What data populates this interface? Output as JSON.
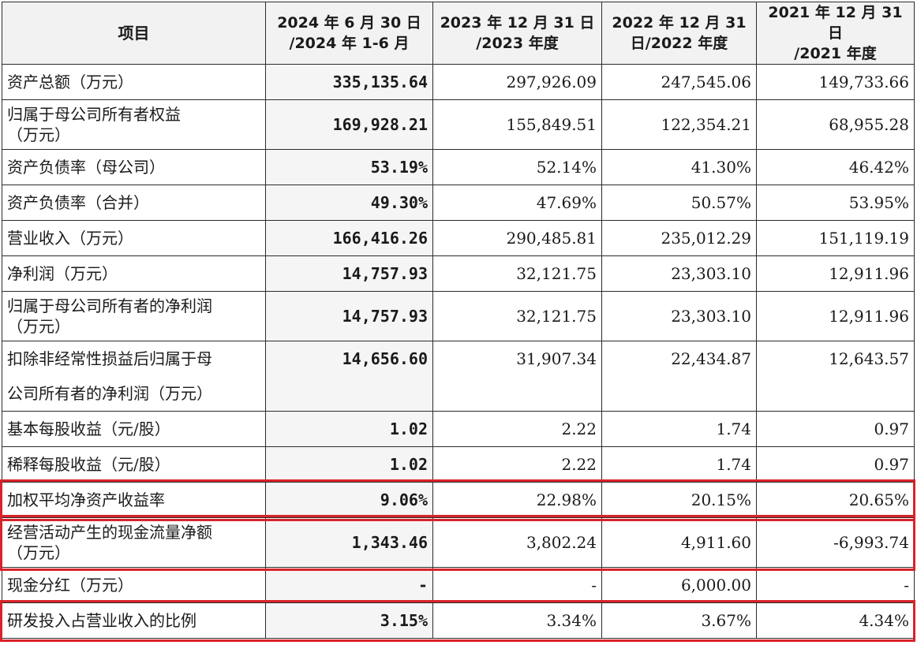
{
  "table": {
    "headers": [
      "项目",
      "2024 年 6 月 30 日\n/2024 年 1-6 月",
      "2023 年 12 月 31 日\n/2023 年度",
      "2022 年 12 月 31\n日/2022 年度",
      "2021 年 12 月 31 日\n/2021 年度"
    ],
    "rows": [
      {
        "label": "资产总额（万元）",
        "values": [
          "335,135.64",
          "297,926.09",
          "247,545.06",
          "149,733.66"
        ]
      },
      {
        "label": "归属于母公司所有者权益\n（万元）",
        "values": [
          "169,928.21",
          "155,849.51",
          "122,354.21",
          "68,955.28"
        ]
      },
      {
        "label": "资产负债率（母公司）",
        "values": [
          "53.19%",
          "52.14%",
          "41.30%",
          "46.42%"
        ]
      },
      {
        "label": "资产负债率（合并）",
        "values": [
          "49.30%",
          "47.69%",
          "50.57%",
          "53.95%"
        ]
      },
      {
        "label": "营业收入（万元）",
        "values": [
          "166,416.26",
          "290,485.81",
          "235,012.29",
          "151,119.19"
        ]
      },
      {
        "label": "净利润（万元）",
        "values": [
          "14,757.93",
          "32,121.75",
          "23,303.10",
          "12,911.96"
        ]
      },
      {
        "label": "归属于母公司所有者的净利润\n（万元）",
        "values": [
          "14,757.93",
          "32,121.75",
          "23,303.10",
          "12,911.96"
        ]
      },
      {
        "label": "扣除非经常性损益后归属于母",
        "values": [
          "14,656.60",
          "31,907.34",
          "22,434.87",
          "12,643.57"
        ]
      },
      {
        "label": "公司所有者的净利润（万元）",
        "values": [
          "",
          "",
          "",
          ""
        ]
      },
      {
        "label": "基本每股收益（元/股）",
        "values": [
          "1.02",
          "2.22",
          "1.74",
          "0.97"
        ]
      },
      {
        "label": "稀释每股收益（元/股）",
        "values": [
          "1.02",
          "2.22",
          "1.74",
          "0.97"
        ]
      },
      {
        "label": "加权平均净资产收益率",
        "values": [
          "9.06%",
          "22.98%",
          "20.15%",
          "20.65%"
        ]
      },
      {
        "label": "经营活动产生的现金流量净额\n（万元）",
        "values": [
          "1,343.46",
          "3,802.24",
          "4,911.60",
          "-6,993.74"
        ]
      },
      {
        "label": "现金分红（万元）",
        "values": [
          "-",
          "-",
          "6,000.00",
          "-"
        ]
      },
      {
        "label": "研发投入占营业收入的比例",
        "values": [
          "3.15%",
          "3.34%",
          "3.67%",
          "4.34%"
        ]
      }
    ]
  },
  "highlight_color": "#d8232a"
}
